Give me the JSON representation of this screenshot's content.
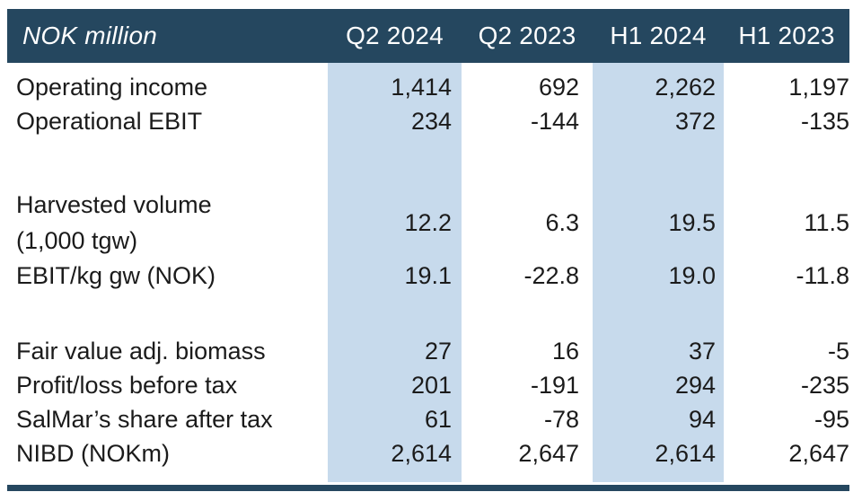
{
  "table": {
    "header": {
      "title": "NOK million",
      "columns": [
        "Q2 2024",
        "Q2 2023",
        "H1 2024",
        "H1 2023"
      ]
    },
    "highlighted_columns": [
      "Q2 2024",
      "H1 2024"
    ],
    "rows": [
      {
        "label": "Operating income",
        "values": [
          "1,414",
          "692",
          "2,262",
          "1,197"
        ]
      },
      {
        "label": "Operational EBIT",
        "values": [
          "234",
          "-144",
          "372",
          "-135"
        ]
      },
      {
        "spacer": true
      },
      {
        "label": "Harvested volume (1,000 tgw)",
        "label_lines": [
          "Harvested volume",
          "(1,000 tgw)"
        ],
        "values": [
          "12.2",
          "6.3",
          "19.5",
          "11.5"
        ]
      },
      {
        "label": "EBIT/kg gw (NOK)",
        "values": [
          "19.1",
          "-22.8",
          "19.0",
          "-11.8"
        ]
      },
      {
        "spacer": true
      },
      {
        "label": "Fair value adj. biomass",
        "values": [
          "27",
          "16",
          "37",
          "-5"
        ]
      },
      {
        "label": "Profit/loss before tax",
        "values": [
          "201",
          "-191",
          "294",
          "-235"
        ]
      },
      {
        "label": "SalMar’s share after tax",
        "values": [
          "61",
          "-78",
          "94",
          "-95"
        ]
      },
      {
        "label": "NIBD (NOKm)",
        "values": [
          "2,614",
          "2,647",
          "2,614",
          "2,647"
        ]
      }
    ],
    "colors": {
      "header_bg": "#25475f",
      "header_text": "#ffffff",
      "highlight_bg": "#c7daec",
      "body_text": "#1b1b1b",
      "page_bg": "#ffffff"
    }
  }
}
